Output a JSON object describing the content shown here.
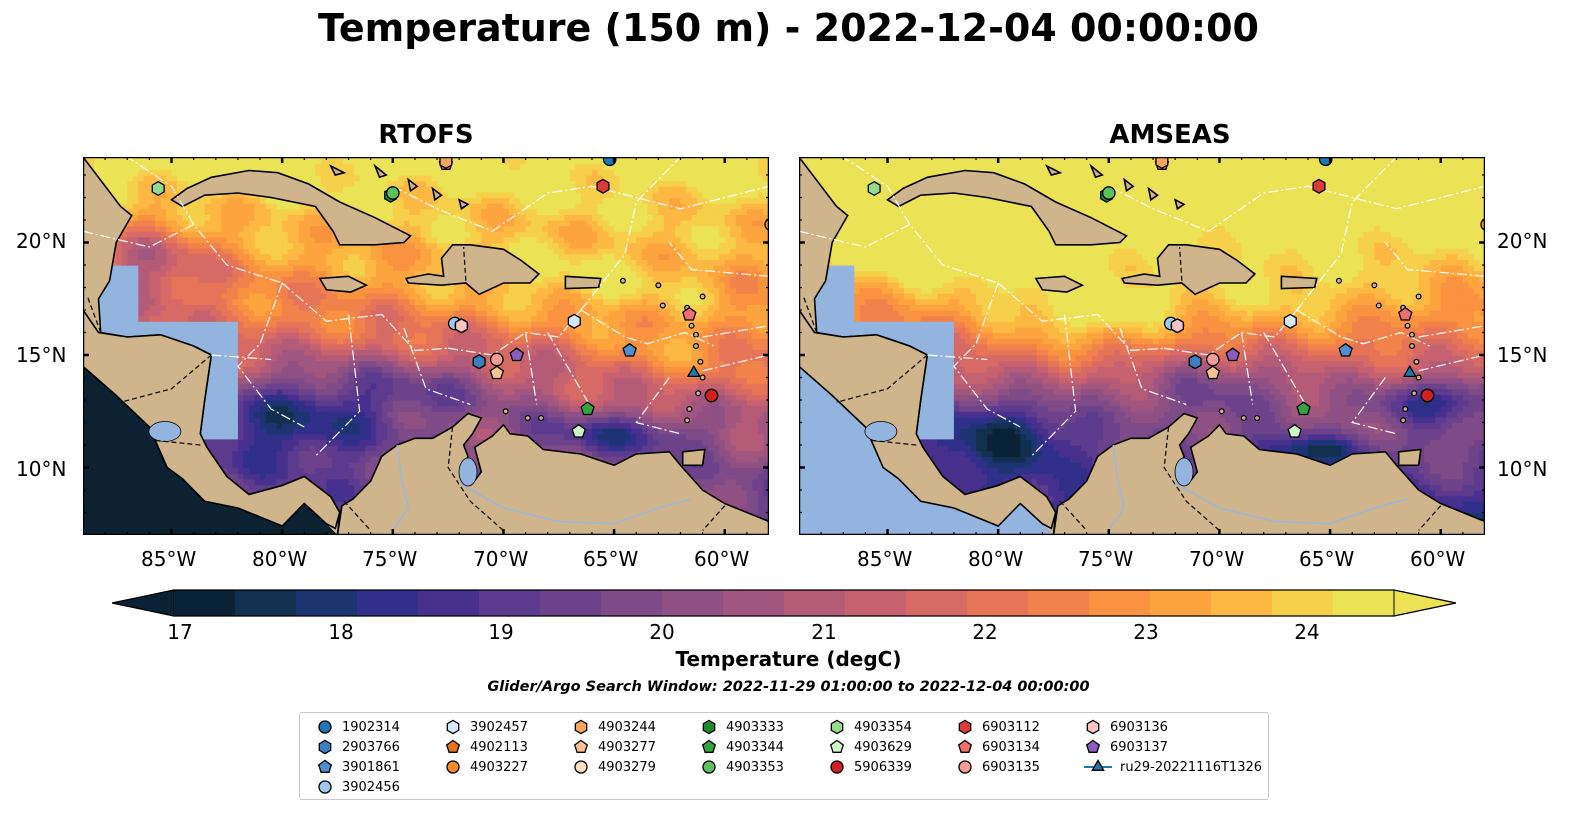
{
  "title": "Temperature (150 m) - 2022-12-04 00:00:00",
  "panels": [
    {
      "title": "RTOFS"
    },
    {
      "title": "AMSEAS"
    }
  ],
  "lon_ticks": [
    "85°W",
    "80°W",
    "75°W",
    "70°W",
    "65°W",
    "60°W"
  ],
  "lat_ticks": [
    "20°N",
    "15°N",
    "10°N"
  ],
  "extent": {
    "lon_min": -89,
    "lon_max": -58,
    "lat_min": 7,
    "lat_max": 23.8
  },
  "colorbar": {
    "label": "Temperature (degC)",
    "ticks": [
      "17",
      "18",
      "19",
      "20",
      "21",
      "22",
      "23",
      "24"
    ],
    "min": 16.75,
    "max": 24.5,
    "extend": "both",
    "colors": [
      "#0a2235",
      "#11304f",
      "#1c3572",
      "#302f8a",
      "#47308e",
      "#5c3a8e",
      "#6d428b",
      "#7e4a88",
      "#8f5084",
      "#a1567f",
      "#b45b78",
      "#c6626f",
      "#d76a64",
      "#e67558",
      "#f2824b",
      "#f99340",
      "#fca53e",
      "#fcb843",
      "#f6cf4b",
      "#ece256"
    ],
    "water_color": "#94b4e0",
    "land_color": "#d0b48c"
  },
  "search_window": "Glider/Argo Search Window: 2022-11-29 01:00:00 to 2022-12-04 00:00:00",
  "markers": [
    {
      "id": "1902314",
      "shape": "circle",
      "color": "#1f77b4",
      "lon": -65.2,
      "lat": 23.7
    },
    {
      "id": "2903766",
      "shape": "hexagon",
      "color": "#3a7fbf",
      "lon": -71.1,
      "lat": 14.7
    },
    {
      "id": "3901861",
      "shape": "pentagon",
      "color": "#4d8fcf",
      "lon": -64.3,
      "lat": 15.2
    },
    {
      "id": "3902456",
      "shape": "circle",
      "color": "#9ec9ec",
      "lon": -72.2,
      "lat": 16.4
    },
    {
      "id": "3902457",
      "shape": "hexagon",
      "color": "#d4e8f8",
      "lon": -66.8,
      "lat": 16.5
    },
    {
      "id": "4902113",
      "shape": "pentagon",
      "color": "#e8741c",
      "lon": -72.6,
      "lat": 23.5
    },
    {
      "id": "4903227",
      "shape": "circle",
      "color": "#f98c28",
      "lon": -57.9,
      "lat": 20.8
    },
    {
      "id": "4903244",
      "shape": "hexagon",
      "color": "#f6a55a",
      "lon": -72.6,
      "lat": 23.6
    },
    {
      "id": "4903277",
      "shape": "pentagon",
      "color": "#f8c292",
      "lon": -70.3,
      "lat": 14.2
    },
    {
      "id": "4903279",
      "shape": "circle",
      "color": "#fde0c4",
      "lon": -71.9,
      "lat": 16.3
    },
    {
      "id": "4903333",
      "shape": "hexagon",
      "color": "#1f8a2c",
      "lon": -75.1,
      "lat": 22.1
    },
    {
      "id": "4903344",
      "shape": "pentagon",
      "color": "#37a33e",
      "lon": -66.2,
      "lat": 12.6
    },
    {
      "id": "4903353",
      "shape": "circle",
      "color": "#5cc05c",
      "lon": -75.0,
      "lat": 22.2
    },
    {
      "id": "4903354",
      "shape": "hexagon",
      "color": "#92dc8a",
      "lon": -85.6,
      "lat": 22.4
    },
    {
      "id": "4903629",
      "shape": "pentagon",
      "color": "#cff6c8",
      "lon": -66.6,
      "lat": 11.6
    },
    {
      "id": "5906339",
      "shape": "circle",
      "color": "#d42020",
      "lon": -60.6,
      "lat": 13.2
    },
    {
      "id": "6903112",
      "shape": "hexagon",
      "color": "#dd3a3a",
      "lon": -65.5,
      "lat": 22.5
    },
    {
      "id": "6903134",
      "shape": "pentagon",
      "color": "#ef6e6e",
      "lon": -61.6,
      "lat": 16.8
    },
    {
      "id": "6903135",
      "shape": "circle",
      "color": "#f79a9a",
      "lon": -70.3,
      "lat": 14.8
    },
    {
      "id": "6903136",
      "shape": "hexagon",
      "color": "#f9c4c4",
      "lon": -71.9,
      "lat": 16.3
    },
    {
      "id": "6903137",
      "shape": "pentagon",
      "color": "#8c5bbf",
      "lon": -69.4,
      "lat": 15.0
    },
    {
      "id": "ru29-20221116T1326",
      "shape": "triangle",
      "color": "#1f77b4",
      "lon": -61.4,
      "lat": 14.2
    }
  ]
}
